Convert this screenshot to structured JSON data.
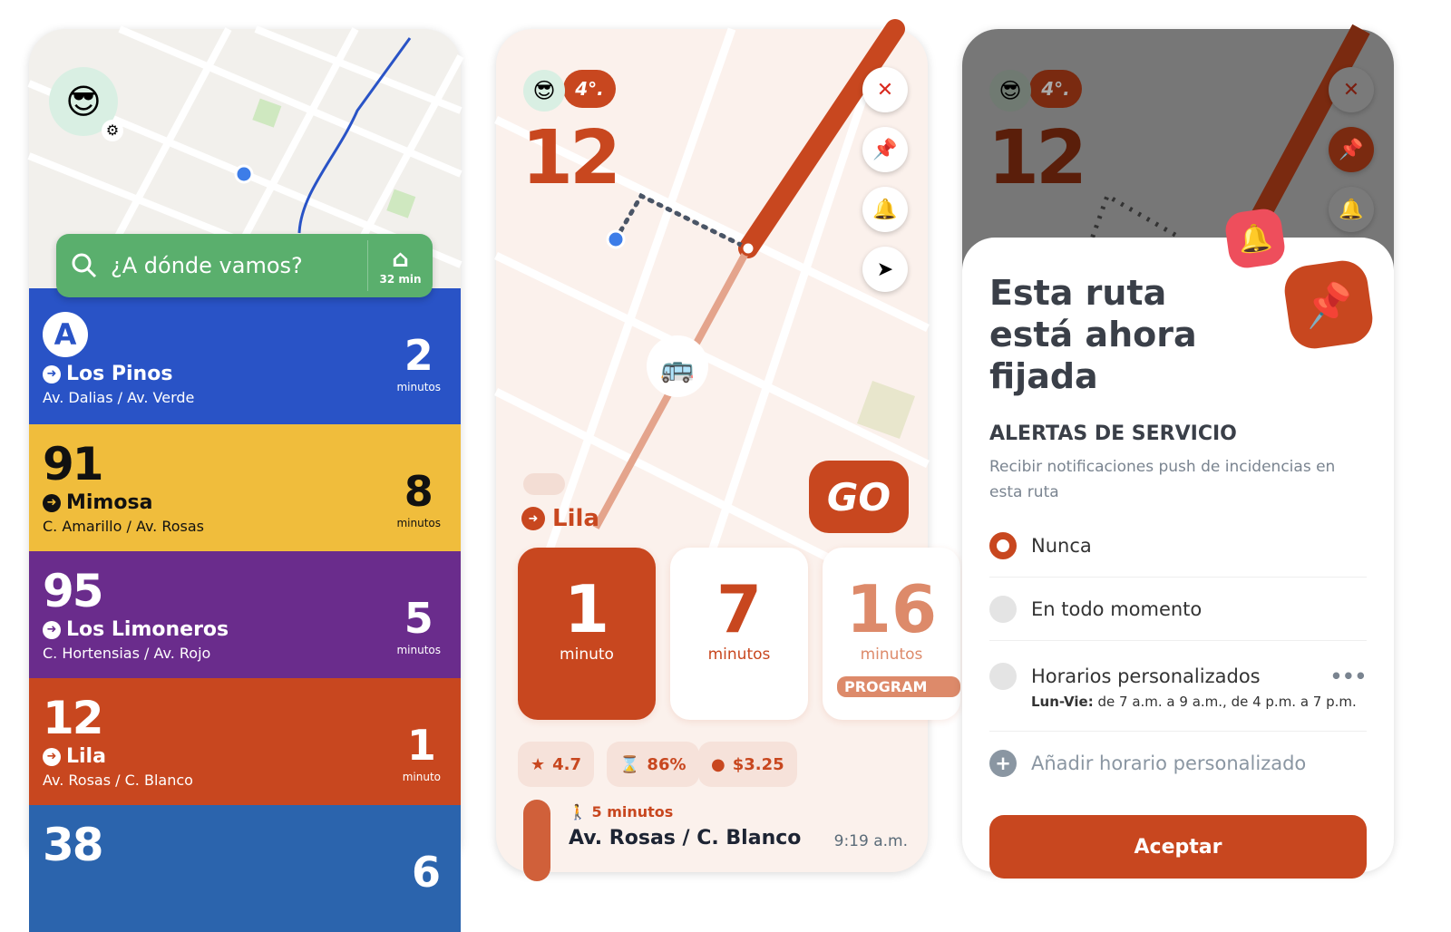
{
  "screen1": {
    "search": {
      "placeholder": "¿A dónde vamos?",
      "home_time": "32 min"
    },
    "routes": [
      {
        "badge": "A",
        "name": "Los Pinos",
        "stop": "Av. Dalias / Av. Verde",
        "eta": "2",
        "unit": "minutos",
        "color": "#2953c6"
      },
      {
        "badge": "91",
        "name": "Mimosa",
        "stop": "C. Amarillo / Av. Rosas",
        "eta": "8",
        "unit": "minutos",
        "color": "#f0bd3c"
      },
      {
        "badge": "95",
        "name": "Los Limoneros",
        "stop": "C. Hortensias / Av. Rojo",
        "eta": "5",
        "unit": "minutos",
        "color": "#6a2c8c"
      },
      {
        "badge": "12",
        "name": "Lila",
        "stop": "Av. Rosas / C. Blanco",
        "eta": "1",
        "unit": "minuto",
        "color": "#c8471f"
      },
      {
        "badge": "38",
        "name": "",
        "stop": "",
        "eta": "6",
        "unit": "",
        "color": "#2b64ad"
      }
    ]
  },
  "screen2": {
    "temp": "4°.",
    "route_number": "12",
    "go_label": "GO",
    "line_name": "Lila",
    "arrivals": [
      {
        "value": "1",
        "unit": "minuto"
      },
      {
        "value": "7",
        "unit": "minutos"
      },
      {
        "value": "16",
        "unit": "minutos",
        "tag": "PROGRAM"
      }
    ],
    "stats": {
      "rating": "4.7",
      "occupancy": "86%",
      "fare": "$3.25"
    },
    "walk": "5 minutos",
    "stop": "Av. Rosas / C. Blanco",
    "time": "9:19 a.m.",
    "accent": "#c8471f"
  },
  "screen3": {
    "temp": "4°.",
    "route_number": "12",
    "title": "Esta ruta está ahora fijada",
    "section": "ALERTAS DE SERVICIO",
    "desc": "Recibir notificaciones push de incidencias en esta ruta",
    "options": [
      {
        "label": "Nunca",
        "selected": true
      },
      {
        "label": "En todo momento",
        "selected": false
      },
      {
        "label": "Horarios personalizados",
        "selected": false
      }
    ],
    "schedule_days": "Lun-Vie:",
    "schedule_times": " de 7 a.m. a 9 a.m., de 4 p.m. a 7 p.m.",
    "add_label": "Añadir horario personalizado",
    "accept_label": "Aceptar"
  }
}
